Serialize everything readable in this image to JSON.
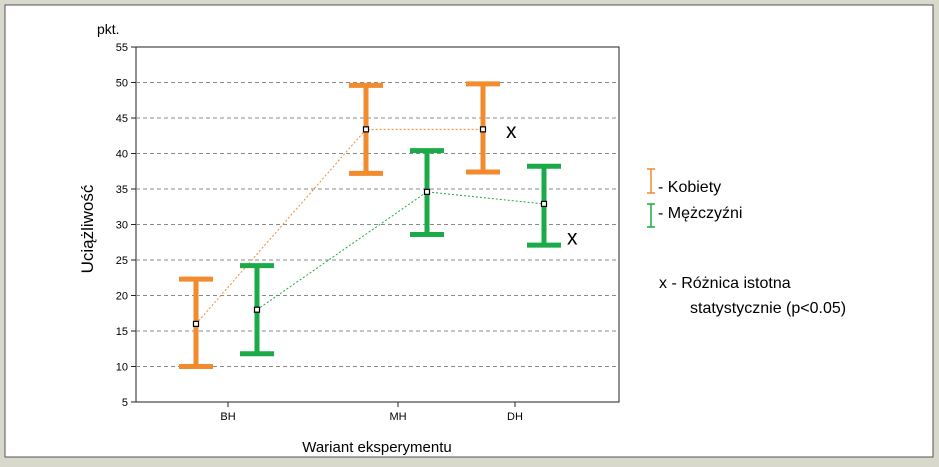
{
  "chart_data": {
    "type": "error-bar",
    "unit_label": "pkt.",
    "ylabel": "Uciążliwość",
    "xlabel": "Wariant eksperymentu",
    "ylim": [
      5,
      55
    ],
    "yticks": [
      5,
      10,
      15,
      20,
      25,
      30,
      35,
      40,
      45,
      50,
      55
    ],
    "grid": true,
    "categories": [
      "BH",
      "MH",
      "DH"
    ],
    "series": [
      {
        "name": "Kobiety",
        "color": "#f28a2e",
        "mean": [
          16.0,
          43.4,
          43.4
        ],
        "lower": [
          10.0,
          37.2,
          37.4
        ],
        "upper": [
          22.3,
          49.6,
          49.8
        ]
      },
      {
        "name": "Mężczyźni",
        "color": "#1aab48",
        "mean": [
          18.0,
          34.6,
          32.9
        ],
        "lower": [
          11.8,
          28.6,
          27.1
        ],
        "upper": [
          24.2,
          40.4,
          38.2
        ]
      }
    ],
    "significance_markers": [
      {
        "label": "x",
        "series": "Kobiety",
        "category": "DH",
        "value": 43.0
      },
      {
        "label": "x",
        "series": "Mężczyźni",
        "category": "DH",
        "value": 28.0
      }
    ],
    "legend_entries": [
      "- Kobiety",
      "- Mężczyźni"
    ],
    "note_line1": "x - Różnica istotna",
    "note_line2": "statystycznie (p<0.05)"
  }
}
